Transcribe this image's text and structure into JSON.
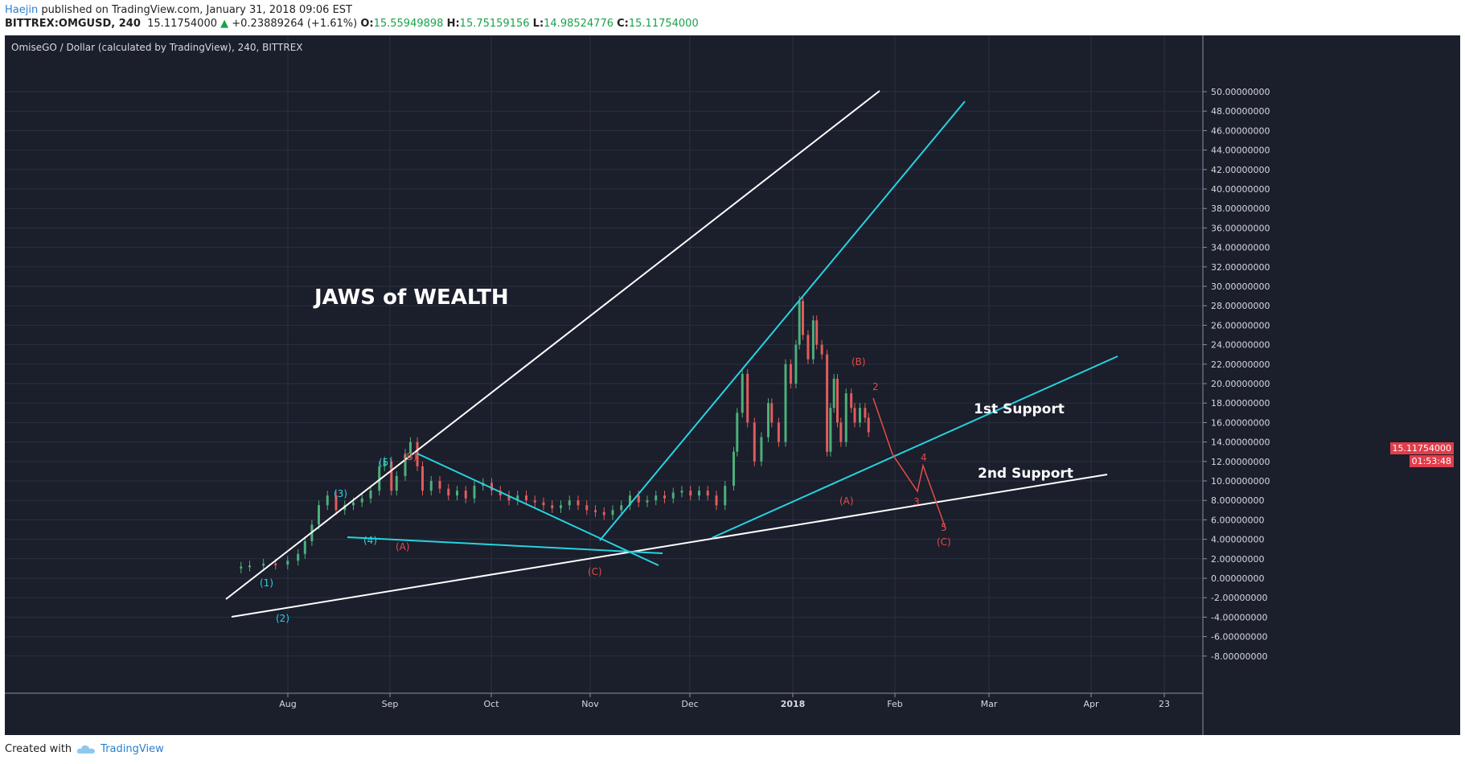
{
  "header": {
    "author": "Haejin",
    "published_text": " published on TradingView.com, January 31, 2018 09:06 EST"
  },
  "ohlc": {
    "symbol": "BITTREX:OMGUSD, 240",
    "last": "15.11754000",
    "change": "+0.23889264 (+1.61%)",
    "open_label": "O:",
    "open": "15.55949898",
    "high_label": "H:",
    "high": "15.75159156",
    "low_label": "L:",
    "low": "14.98524776",
    "close_label": "C:",
    "close": "15.11754000"
  },
  "chart": {
    "title": "OmiseGO / Dollar (calculated by TradingView), 240, BITTREX",
    "headline": "JAWS of WEALTH",
    "support1": "1st Support",
    "support2": "2nd Support",
    "price_tag": "15.11754000",
    "countdown": "01:53:48",
    "wave_labels_cyan": [
      "(1)",
      "(2)",
      "(3)",
      "(4)",
      "(5)"
    ],
    "wave_labels_red": [
      "(A)",
      "(B)",
      "(C)",
      "(B)",
      "(A)",
      "(C)",
      "2",
      "3",
      "4",
      "5"
    ],
    "colors": {
      "bg": "#1b1e2b",
      "cyan": "#27d3e0",
      "red": "#e54b4b",
      "white": "#ffffff",
      "grid": "#2b3040"
    }
  },
  "chart_data": {
    "type": "line",
    "title": "OmiseGO / Dollar (calculated by TradingView), 240, BITTREX",
    "x_ticks": [
      "Aug",
      "Sep",
      "Oct",
      "Nov",
      "Dec",
      "2018",
      "Feb",
      "Mar",
      "Apr",
      "23"
    ],
    "y_ticks": [
      "50.00000000",
      "48.00000000",
      "46.00000000",
      "44.00000000",
      "42.00000000",
      "40.00000000",
      "38.00000000",
      "36.00000000",
      "34.00000000",
      "32.00000000",
      "30.00000000",
      "28.00000000",
      "26.00000000",
      "24.00000000",
      "22.00000000",
      "20.00000000",
      "18.00000000",
      "16.00000000",
      "14.00000000",
      "12.00000000",
      "10.00000000",
      "8.00000000",
      "6.00000000",
      "4.00000000",
      "2.00000000",
      "0.00000000",
      "-2.00000000",
      "-4.00000000",
      "-6.00000000",
      "-8.00000000"
    ],
    "ylim": [
      -8,
      50
    ],
    "series": [
      {
        "values": [
          [
            0,
            1.0
          ],
          [
            5,
            1.2
          ],
          [
            10,
            1.3
          ],
          [
            18,
            1.5
          ],
          [
            25,
            1.4
          ],
          [
            32,
            1.8
          ],
          [
            38,
            2.5
          ],
          [
            42,
            3.8
          ],
          [
            46,
            5.5
          ],
          [
            50,
            7.5
          ],
          [
            55,
            8.5
          ],
          [
            60,
            7.0
          ],
          [
            65,
            7.5
          ],
          [
            70,
            7.8
          ],
          [
            75,
            8.2
          ],
          [
            80,
            9.0
          ],
          [
            85,
            11.5
          ],
          [
            88,
            12.0
          ],
          [
            92,
            9.0
          ],
          [
            95,
            10.5
          ],
          [
            100,
            12.8
          ],
          [
            103,
            14.0
          ],
          [
            107,
            11.5
          ],
          [
            110,
            9.0
          ],
          [
            115,
            10.0
          ],
          [
            120,
            9.2
          ],
          [
            125,
            8.5
          ],
          [
            130,
            9.0
          ],
          [
            135,
            8.2
          ],
          [
            140,
            9.5
          ],
          [
            145,
            9.8
          ],
          [
            150,
            9.0
          ],
          [
            155,
            8.5
          ],
          [
            160,
            8.0
          ],
          [
            165,
            8.5
          ],
          [
            170,
            8.0
          ],
          [
            175,
            7.8
          ],
          [
            180,
            7.5
          ],
          [
            185,
            7.2
          ],
          [
            190,
            7.5
          ],
          [
            195,
            8.0
          ],
          [
            200,
            7.5
          ],
          [
            205,
            7.0
          ],
          [
            210,
            6.8
          ],
          [
            215,
            6.5
          ],
          [
            220,
            7.0
          ],
          [
            225,
            7.5
          ],
          [
            230,
            8.5
          ],
          [
            235,
            7.8
          ],
          [
            240,
            8.0
          ],
          [
            245,
            8.5
          ],
          [
            250,
            8.2
          ],
          [
            255,
            8.8
          ],
          [
            260,
            9.0
          ],
          [
            265,
            8.5
          ],
          [
            270,
            9.0
          ],
          [
            275,
            8.5
          ],
          [
            280,
            7.5
          ],
          [
            285,
            9.5
          ],
          [
            290,
            13.0
          ],
          [
            292,
            17.0
          ],
          [
            295,
            21.0
          ],
          [
            298,
            16.0
          ],
          [
            302,
            12.0
          ],
          [
            306,
            14.5
          ],
          [
            310,
            18.0
          ],
          [
            312,
            16.0
          ],
          [
            316,
            14.0
          ],
          [
            320,
            22.0
          ],
          [
            323,
            20.0
          ],
          [
            326,
            24.0
          ],
          [
            328,
            28.5
          ],
          [
            330,
            25.0
          ],
          [
            333,
            22.5
          ],
          [
            336,
            26.5
          ],
          [
            338,
            24.0
          ],
          [
            341,
            23.0
          ],
          [
            344,
            13.0
          ],
          [
            346,
            17.5
          ],
          [
            348,
            20.5
          ],
          [
            350,
            16.0
          ],
          [
            352,
            14.0
          ],
          [
            355,
            19.0
          ],
          [
            358,
            17.5
          ],
          [
            360,
            16.0
          ],
          [
            363,
            17.5
          ],
          [
            366,
            16.5
          ],
          [
            368,
            15.0
          ]
        ]
      }
    ]
  }
}
